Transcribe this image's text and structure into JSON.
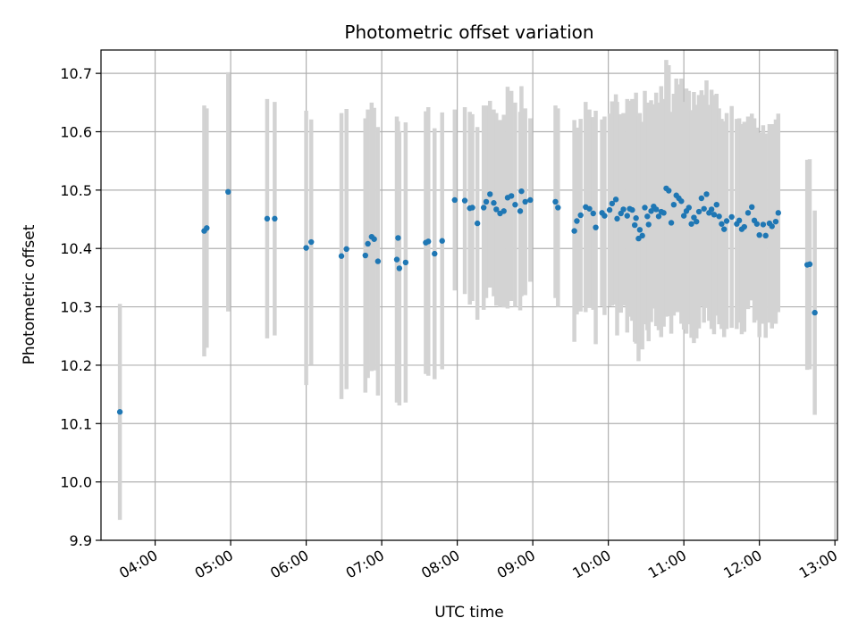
{
  "chart_data": {
    "type": "scatter",
    "title": "Photometric offset variation",
    "xlabel": "UTC time",
    "ylabel": "Photometric offset",
    "grid": true,
    "xlim": [
      "03:17",
      "13:02"
    ],
    "ylim": [
      9.9,
      10.74
    ],
    "x_ticks": [
      "04:00",
      "05:00",
      "06:00",
      "07:00",
      "08:00",
      "09:00",
      "10:00",
      "11:00",
      "12:00",
      "13:00"
    ],
    "y_ticks": [
      "9.9",
      "10.0",
      "10.1",
      "10.2",
      "10.3",
      "10.4",
      "10.5",
      "10.6",
      "10.7"
    ],
    "colors": {
      "points": "#1f77b4",
      "errorbars": "#d3d3d3",
      "grid": "#b0b0b0"
    },
    "series": [
      {
        "x": [
          "03:32",
          "04:39",
          "04:41",
          "04:58",
          "05:29",
          "05:35",
          "06:00",
          "06:04",
          "06:28",
          "06:32",
          "06:47",
          "06:49",
          "06:52",
          "06:54",
          "06:57",
          "07:12",
          "07:13",
          "07:14",
          "07:19",
          "07:35",
          "07:37",
          "07:42",
          "07:48",
          "07:58",
          "08:06",
          "08:10",
          "08:12",
          "08:16",
          "08:21",
          "08:23",
          "08:26",
          "08:29",
          "08:31",
          "08:34",
          "08:37",
          "08:40",
          "08:43",
          "08:46",
          "08:50",
          "08:51",
          "08:54",
          "08:58",
          "09:18",
          "09:20",
          "09:33",
          "09:35",
          "09:38",
          "09:42",
          "09:45",
          "09:48",
          "09:50",
          "09:55",
          "09:57",
          "10:01",
          "10:03",
          "10:06",
          "10:07",
          "10:10",
          "10:12",
          "10:15",
          "10:17",
          "10:19",
          "10:21",
          "10:22",
          "10:24",
          "10:25",
          "10:27",
          "10:29",
          "10:31",
          "10:32",
          "10:34",
          "10:36",
          "10:38",
          "10:40",
          "10:42",
          "10:44",
          "10:46",
          "10:48",
          "10:50",
          "10:52",
          "10:54",
          "10:56",
          "10:58",
          "11:00",
          "11:02",
          "11:04",
          "11:06",
          "11:08",
          "11:10",
          "11:12",
          "11:14",
          "11:16",
          "11:18",
          "11:20",
          "11:22",
          "11:24",
          "11:26",
          "11:28",
          "11:30",
          "11:32",
          "11:34",
          "11:38",
          "11:42",
          "11:44",
          "11:46",
          "11:48",
          "11:51",
          "11:54",
          "11:56",
          "11:58",
          "12:00",
          "12:03",
          "12:05",
          "12:08",
          "12:10",
          "12:13",
          "12:15",
          "12:38",
          "12:40",
          "12:44"
        ],
        "y": [
          10.12,
          10.43,
          10.435,
          10.497,
          10.451,
          10.451,
          10.401,
          10.411,
          10.387,
          10.399,
          10.388,
          10.408,
          10.42,
          10.416,
          10.378,
          10.381,
          10.418,
          10.366,
          10.376,
          10.41,
          10.412,
          10.391,
          10.413,
          10.483,
          10.482,
          10.469,
          10.47,
          10.443,
          10.47,
          10.48,
          10.493,
          10.478,
          10.467,
          10.46,
          10.464,
          10.487,
          10.49,
          10.475,
          10.464,
          10.498,
          10.48,
          10.483,
          10.48,
          10.47,
          10.43,
          10.447,
          10.457,
          10.471,
          10.468,
          10.46,
          10.436,
          10.461,
          10.456,
          10.466,
          10.477,
          10.484,
          10.451,
          10.46,
          10.467,
          10.456,
          10.468,
          10.466,
          10.44,
          10.452,
          10.417,
          10.432,
          10.422,
          10.47,
          10.455,
          10.441,
          10.464,
          10.472,
          10.467,
          10.455,
          10.463,
          10.461,
          10.503,
          10.499,
          10.444,
          10.475,
          10.491,
          10.486,
          10.481,
          10.456,
          10.464,
          10.47,
          10.442,
          10.453,
          10.446,
          10.463,
          10.486,
          10.468,
          10.493,
          10.461,
          10.467,
          10.458,
          10.475,
          10.455,
          10.442,
          10.433,
          10.447,
          10.454,
          10.442,
          10.448,
          10.433,
          10.437,
          10.461,
          10.471,
          10.448,
          10.442,
          10.423,
          10.441,
          10.422,
          10.443,
          10.438,
          10.446,
          10.461,
          10.372,
          10.373,
          10.29
        ],
        "err": [
          0.185,
          0.215,
          0.205,
          0.205,
          0.205,
          0.2,
          0.235,
          0.21,
          0.245,
          0.24,
          0.235,
          0.23,
          0.23,
          0.225,
          0.23,
          0.245,
          0.2,
          0.235,
          0.24,
          0.225,
          0.23,
          0.215,
          0.22,
          0.155,
          0.16,
          0.165,
          0.16,
          0.165,
          0.175,
          0.165,
          0.16,
          0.16,
          0.165,
          0.16,
          0.165,
          0.19,
          0.18,
          0.175,
          0.17,
          0.18,
          0.16,
          0.14,
          0.165,
          0.17,
          0.19,
          0.16,
          0.165,
          0.18,
          0.17,
          0.165,
          0.2,
          0.16,
          0.17,
          0.165,
          0.175,
          0.18,
          0.2,
          0.17,
          0.165,
          0.2,
          0.185,
          0.19,
          0.2,
          0.215,
          0.21,
          0.2,
          0.195,
          0.2,
          0.195,
          0.2,
          0.19,
          0.175,
          0.2,
          0.195,
          0.215,
          0.195,
          0.22,
          0.215,
          0.19,
          0.19,
          0.2,
          0.195,
          0.21,
          0.195,
          0.21,
          0.2,
          0.195,
          0.215,
          0.2,
          0.2,
          0.185,
          0.195,
          0.195,
          0.185,
          0.205,
          0.205,
          0.19,
          0.185,
          0.18,
          0.185,
          0.185,
          0.19,
          0.18,
          0.175,
          0.18,
          0.18,
          0.165,
          0.16,
          0.175,
          0.165,
          0.175,
          0.17,
          0.175,
          0.17,
          0.175,
          0.175,
          0.17,
          0.18,
          0.18,
          0.175
        ]
      }
    ]
  }
}
